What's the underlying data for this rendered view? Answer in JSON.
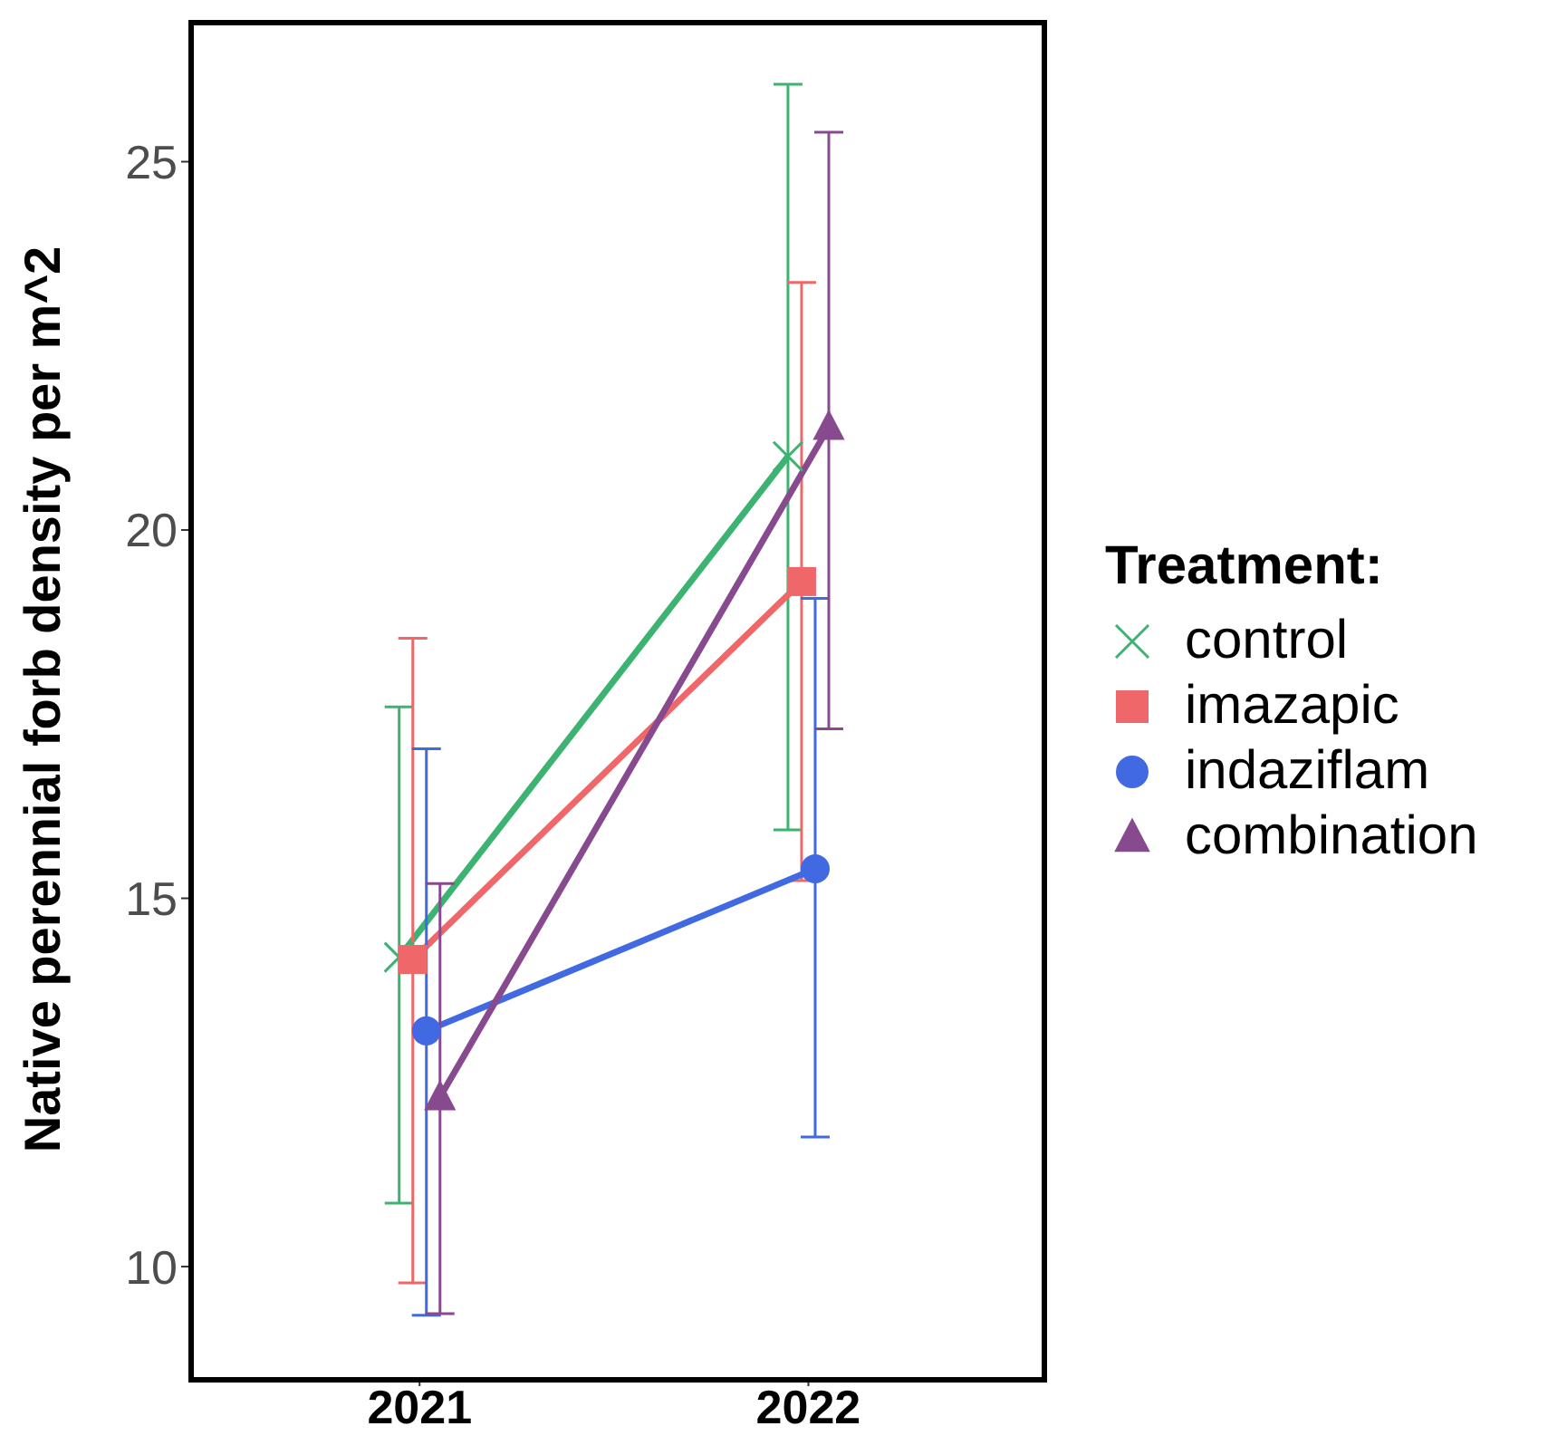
{
  "chart_data": {
    "type": "line",
    "ylabel": "Native perennial forb density per m^2",
    "legend_title": "Treatment:",
    "categories": [
      "2021",
      "2022"
    ],
    "series": [
      {
        "name": "control",
        "color": "#3cb371",
        "marker": "cross",
        "values": [
          14.2,
          21.0
        ],
        "errors": [
          [
            10.86,
            17.6
          ],
          [
            15.93,
            26.05
          ]
        ]
      },
      {
        "name": "imazapic",
        "color": "#f0676a",
        "marker": "square",
        "values": [
          14.17,
          19.3
        ],
        "errors": [
          [
            9.78,
            18.53
          ],
          [
            15.24,
            23.36
          ]
        ]
      },
      {
        "name": "indaziflam",
        "color": "#4169e1",
        "marker": "circle",
        "values": [
          13.2,
          15.4
        ],
        "errors": [
          [
            9.34,
            17.03
          ],
          [
            11.76,
            19.07
          ]
        ]
      },
      {
        "name": "combination",
        "color": "#874a8e",
        "marker": "triangle",
        "values": [
          12.3,
          21.4
        ],
        "errors": [
          [
            9.36,
            15.2
          ],
          [
            17.3,
            25.4
          ]
        ]
      }
    ],
    "ylim": [
      8.5,
      26.9
    ],
    "yticks": [
      10,
      15,
      20,
      25
    ],
    "grid": false,
    "legend": "right"
  }
}
